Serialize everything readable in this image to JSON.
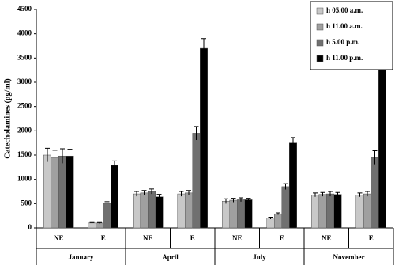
{
  "chart_data": {
    "type": "bar",
    "y_label": "Catecholamines (pg/ml)",
    "categories": [
      "NE",
      "E",
      "NE",
      "E",
      "NE",
      "E",
      "NE",
      "E"
    ],
    "groups": [
      "January",
      "April",
      "July",
      "November"
    ],
    "series": [
      {
        "name": "h 05.00 a.m.",
        "color": "#c8c8c8",
        "values": [
          1500,
          100,
          700,
          700,
          550,
          200,
          680,
          680
        ],
        "errors": [
          140,
          10,
          50,
          50,
          50,
          20,
          40,
          40
        ]
      },
      {
        "name": "h 11.00 a.m.",
        "color": "#a0a0a0",
        "values": [
          1450,
          100,
          720,
          720,
          570,
          290,
          690,
          700
        ],
        "errors": [
          150,
          10,
          50,
          50,
          40,
          20,
          40,
          50
        ]
      },
      {
        "name": "h 5.00 p.m.",
        "color": "#707070",
        "values": [
          1480,
          500,
          750,
          1950,
          580,
          850,
          700,
          1450
        ],
        "errors": [
          150,
          40,
          50,
          140,
          40,
          60,
          50,
          140
        ]
      },
      {
        "name": "h 11.00 p.m.",
        "color": "#000000",
        "values": [
          1480,
          1290,
          640,
          3700,
          580,
          1750,
          690,
          3830
        ],
        "errors": [
          140,
          90,
          50,
          200,
          30,
          110,
          40,
          210
        ]
      }
    ],
    "ylim": [
      0,
      4500
    ],
    "yticks": [
      0,
      500,
      1000,
      1500,
      2000,
      2500,
      3000,
      3500,
      4000,
      4500
    ],
    "grid": false
  }
}
